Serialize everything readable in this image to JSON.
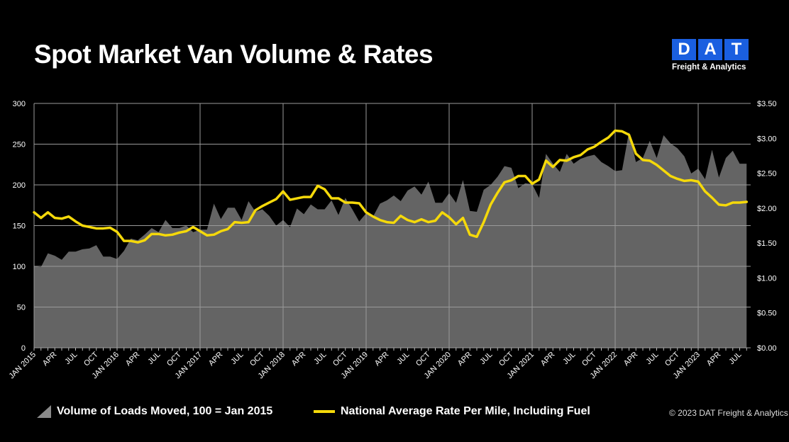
{
  "title": "Spot Market Van Volume & Rates",
  "logo": {
    "letters": [
      "D",
      "A",
      "T"
    ],
    "subtitle": "Freight & Analytics",
    "color": "#1a5fe0"
  },
  "copyright": "© 2023 DAT Freight & Analytics",
  "chart_data": {
    "type": "area+line",
    "grid": true,
    "x_start": "2015-01",
    "x_labels": [
      "JAN 2015",
      "APR",
      "JUL",
      "OCT",
      "JAN 2016",
      "APR",
      "JUL",
      "OCT",
      "JAN 2017",
      "APR",
      "JUL",
      "OCT",
      "JAN 2018",
      "APR",
      "JUL",
      "OCT",
      "JAN 2019",
      "APR",
      "JUL",
      "OCT",
      "JAN 2020",
      "APR",
      "JUL",
      "OCT",
      "JAN 2021",
      "APR",
      "JUL",
      "OCT",
      "JAN 2022",
      "APR",
      "JUL",
      "OCT",
      "JAN 2023",
      "APR",
      "JUL"
    ],
    "y_left": {
      "range": [
        0,
        300
      ],
      "ticks": [
        "0",
        "50",
        "100",
        "150",
        "200",
        "250",
        "300"
      ]
    },
    "y_right": {
      "range": [
        0,
        3.5
      ],
      "ticks": [
        "$0.00",
        "$0.50",
        "$1.00",
        "$1.50",
        "$2.00",
        "$2.50",
        "$3.00",
        "$3.50"
      ]
    },
    "legend_placement": "bottom",
    "series": [
      {
        "name": "Volume of Loads Moved, 100 = Jan 2015",
        "type": "area",
        "axis": "left",
        "color": "#646464",
        "values": [
          100,
          99,
          116,
          113,
          108,
          118,
          118,
          121,
          122,
          126,
          112,
          112,
          109,
          119,
          134,
          132,
          139,
          147,
          142,
          157,
          147,
          147,
          150,
          142,
          145,
          145,
          177,
          158,
          172,
          172,
          157,
          180,
          167,
          170,
          162,
          150,
          157,
          148,
          171,
          164,
          176,
          170,
          170,
          181,
          163,
          184,
          170,
          155,
          165,
          161,
          177,
          181,
          187,
          180,
          193,
          198,
          188,
          204,
          178,
          178,
          190,
          178,
          206,
          168,
          167,
          194,
          200,
          210,
          223,
          221,
          196,
          202,
          201,
          184,
          238,
          226,
          216,
          238,
          226,
          232,
          235,
          237,
          228,
          223,
          217,
          218,
          265,
          228,
          233,
          254,
          233,
          261,
          251,
          245,
          235,
          214,
          220,
          207,
          243,
          209,
          233,
          242,
          226,
          226
        ]
      },
      {
        "name": "National Average Rate Per Mile, Including Fuel",
        "type": "line",
        "axis": "right",
        "color": "#f5d90a",
        "values": [
          1.94,
          1.86,
          1.94,
          1.86,
          1.85,
          1.88,
          1.81,
          1.75,
          1.73,
          1.71,
          1.71,
          1.72,
          1.66,
          1.53,
          1.53,
          1.51,
          1.54,
          1.63,
          1.63,
          1.61,
          1.62,
          1.65,
          1.67,
          1.73,
          1.67,
          1.61,
          1.62,
          1.67,
          1.7,
          1.8,
          1.79,
          1.8,
          1.97,
          2.03,
          2.08,
          2.13,
          2.24,
          2.12,
          2.14,
          2.16,
          2.16,
          2.32,
          2.27,
          2.14,
          2.14,
          2.08,
          2.08,
          2.07,
          1.94,
          1.88,
          1.83,
          1.8,
          1.79,
          1.89,
          1.83,
          1.8,
          1.84,
          1.8,
          1.82,
          1.94,
          1.87,
          1.77,
          1.86,
          1.62,
          1.59,
          1.8,
          2.05,
          2.22,
          2.37,
          2.4,
          2.46,
          2.46,
          2.35,
          2.41,
          2.68,
          2.59,
          2.69,
          2.68,
          2.73,
          2.76,
          2.84,
          2.88,
          2.95,
          3.01,
          3.11,
          3.1,
          3.05,
          2.78,
          2.69,
          2.68,
          2.62,
          2.54,
          2.46,
          2.42,
          2.39,
          2.4,
          2.38,
          2.24,
          2.15,
          2.05,
          2.04,
          2.08,
          2.08,
          2.09
        ]
      }
    ]
  }
}
